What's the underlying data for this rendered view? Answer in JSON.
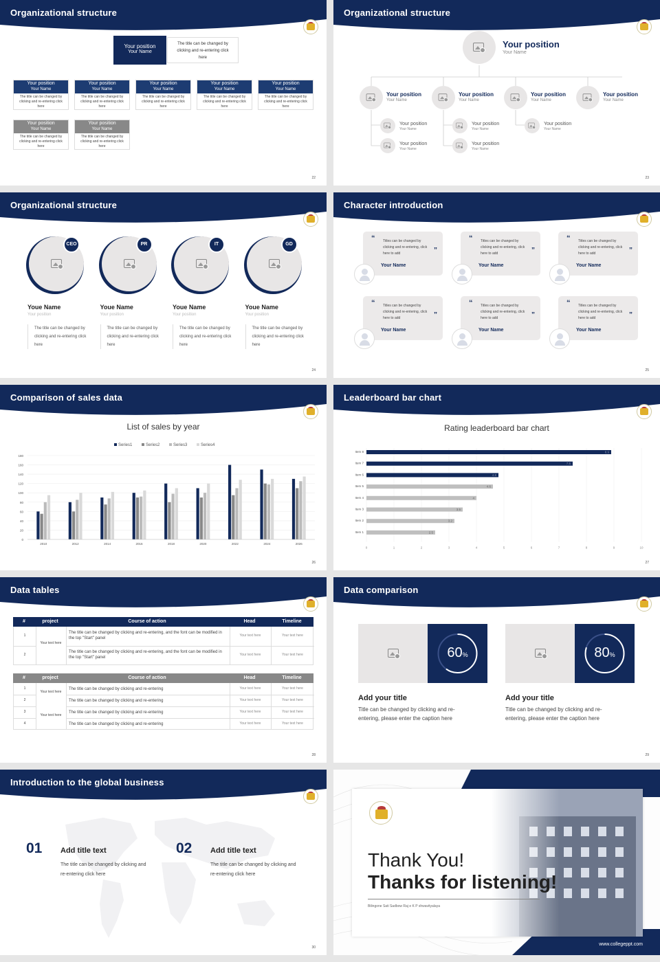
{
  "slides": {
    "s22": {
      "title": "Organizational structure",
      "page": "22",
      "top_label": "Your position",
      "top_name": "Your Name",
      "top_note": "The title can be changed by clicking and re-entering click here",
      "pos": "Your position",
      "name": "Your Name",
      "desc": "The title can be changed by clicking and re-entering click here"
    },
    "s23": {
      "title": "Organizational structure",
      "page": "23",
      "pos": "Your position",
      "name": "Your Name"
    },
    "s24": {
      "title": "Organizational structure",
      "page": "24",
      "people": [
        {
          "tag": "CEO",
          "name": "Youe Name",
          "pos": "Your position",
          "desc": "The title can be changed by clicking and re-entering click here"
        },
        {
          "tag": "PR",
          "name": "Youe Name",
          "pos": "Your position",
          "desc": "The title can be changed by clicking and re-entering click here"
        },
        {
          "tag": "IT",
          "name": "Youe Name",
          "pos": "Your position",
          "desc": "The title can be changed by clicking and re-entering click here"
        },
        {
          "tag": "GD",
          "name": "Youe Name",
          "pos": "Your position",
          "desc": "The title can be changed by clicking and re-entering click here"
        }
      ]
    },
    "s25": {
      "title": "Character introduction",
      "page": "25",
      "quote": "Titles can be changed by clicking and re-entering, click here to add",
      "name": "Your Name"
    },
    "s26": {
      "title": "Comparison of sales data",
      "page": "26"
    },
    "s27": {
      "title": "Leaderboard bar chart",
      "page": "27"
    },
    "s28": {
      "title": "Data tables",
      "page": "28",
      "t1_head": [
        "#",
        "project",
        "Course of action",
        "Head",
        "Timeline"
      ],
      "t1_rows": [
        {
          "n": "1",
          "a": "The title can be changed by clicking and re-entering, and the font can be modified in the top \"Start\" panel",
          "h": "Your text here",
          "t": "Your text here"
        },
        {
          "n": "2",
          "a": "The title can be changed by clicking and re-entering, and the font can be modified in the top \"Start\" panel",
          "h": "Your text here",
          "t": "Your text here"
        }
      ],
      "t1_project": "Your text here",
      "t2_head": [
        "#",
        "project",
        "Course of action",
        "Head",
        "Timeline"
      ],
      "t2_rows": [
        {
          "n": "1",
          "a": "The title can be changed by clicking and re-entering",
          "h": "Your text here",
          "t": "Your text here"
        },
        {
          "n": "2",
          "a": "The title can be changed by clicking and re-entering",
          "h": "Your text here",
          "t": "Your text here"
        },
        {
          "n": "3",
          "a": "The title can be changed by clicking and re-entering",
          "h": "Your text here",
          "t": "Your text here"
        },
        {
          "n": "4",
          "a": "The title can be changed by clicking and re-entering",
          "h": "Your text here",
          "t": "Your text here"
        }
      ],
      "t2_project": "Your text here"
    },
    "s29": {
      "title": "Data comparison",
      "page": "29",
      "items": [
        {
          "pct": 60,
          "pct_label": "60",
          "title": "Add your title",
          "desc": "Title can be changed by clicking and re-entering, please enter the caption here"
        },
        {
          "pct": 80,
          "pct_label": "80",
          "title": "Add your title",
          "desc": "Title can be changed by clicking and re-entering, please enter the caption here"
        }
      ]
    },
    "s30": {
      "title": "Introduction to the global business",
      "page": "30",
      "items": [
        {
          "num": "01",
          "title": "Add title text",
          "desc": "The title can be changed by clicking and re-entering click here"
        },
        {
          "num": "02",
          "title": "Add title text",
          "desc": "The title can be changed by clicking and re-entering click here"
        }
      ]
    },
    "s31": {
      "thank": "Thank You!",
      "thanks": "Thanks for listening!",
      "school": "Bilingone Sati Sadbow Raj e K P shwavityalaya",
      "site": "www.collegeppt.com"
    }
  },
  "chart_data": [
    {
      "type": "bar",
      "title": "List of sales by year",
      "categories": [
        "2010",
        "2012",
        "2014",
        "2016",
        "2018",
        "2020",
        "2022",
        "2024",
        "2026"
      ],
      "series": [
        {
          "name": "Series1",
          "values": [
            60,
            80,
            90,
            100,
            120,
            110,
            160,
            150,
            130
          ]
        },
        {
          "name": "Series2",
          "values": [
            55,
            60,
            75,
            90,
            80,
            90,
            95,
            120,
            110
          ]
        },
        {
          "name": "Series3",
          "values": [
            80,
            85,
            88,
            92,
            98,
            100,
            110,
            118,
            125
          ]
        },
        {
          "name": "Series4",
          "values": [
            95,
            100,
            102,
            105,
            110,
            120,
            128,
            130,
            135
          ]
        }
      ],
      "ylim": [
        0,
        180
      ],
      "yticks": [
        0,
        20,
        40,
        60,
        80,
        100,
        120,
        140,
        160,
        180
      ],
      "colors": [
        "#12295a",
        "#888888",
        "#bbbbbb",
        "#d9d9d9"
      ],
      "legend": "top"
    },
    {
      "type": "bar",
      "orientation": "horizontal",
      "title": "Rating leaderboard bar chart",
      "categories": [
        "Item 8",
        "Item 7",
        "Item 6",
        "Item 5",
        "Item 4",
        "Item 3",
        "Item 2",
        "Item 1"
      ],
      "values": [
        8.9,
        7.5,
        4.8,
        4.6,
        4,
        3.5,
        3.2,
        2.5
      ],
      "xlim": [
        0,
        10
      ],
      "xticks": [
        0,
        1,
        2,
        3,
        4,
        5,
        6,
        7,
        8,
        9,
        10
      ],
      "colors": [
        "#12295a",
        "#12295a",
        "#12295a",
        "#bfbfbf",
        "#bfbfbf",
        "#bfbfbf",
        "#bfbfbf",
        "#bfbfbf"
      ]
    }
  ]
}
